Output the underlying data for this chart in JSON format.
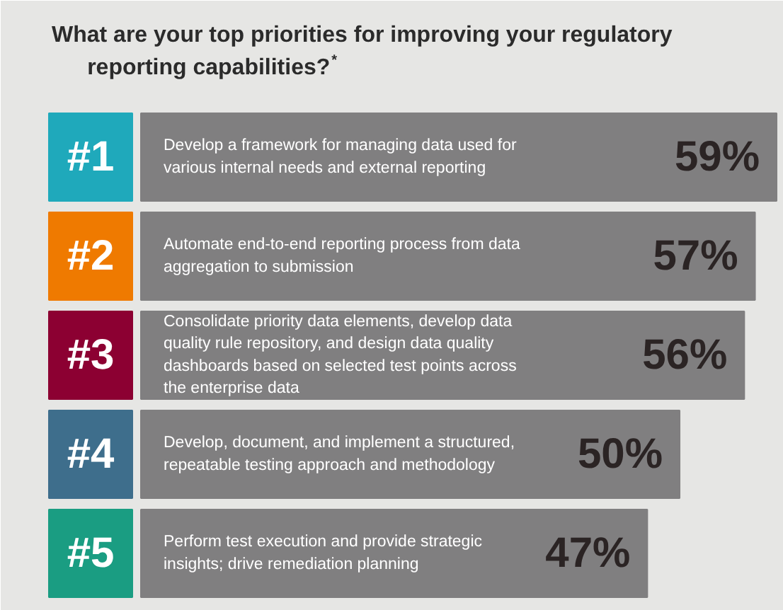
{
  "chart_data": {
    "type": "bar",
    "orientation": "horizontal",
    "title": "What are your top priorities for improving your regulatory reporting capabilities?$^{*}$",
    "categories": [
      "Develop a framework for managing data used for various internal needs and external reporting",
      "Automate end-to-end reporting process from data aggregation to submission",
      "Consolidate priority data elements, develop data quality rule repository, and design data quality dashboards based on selected test points across the enterprise data",
      "Develop, document, and implement a structured, repeatable testing approach and methodology",
      "Perform test execution and provide strategic insights; drive remediation planning"
    ],
    "values": [
      59,
      57,
      56,
      50,
      47
    ],
    "color": "#807f80",
    "value_labels": [
      "59%",
      "57%",
      "56%",
      "50%",
      "47%"
    ],
    "annotations": [
      "#1",
      "#2",
      "#3",
      "#4",
      "#5"
    ],
    "tick_labels": false
  }
}
